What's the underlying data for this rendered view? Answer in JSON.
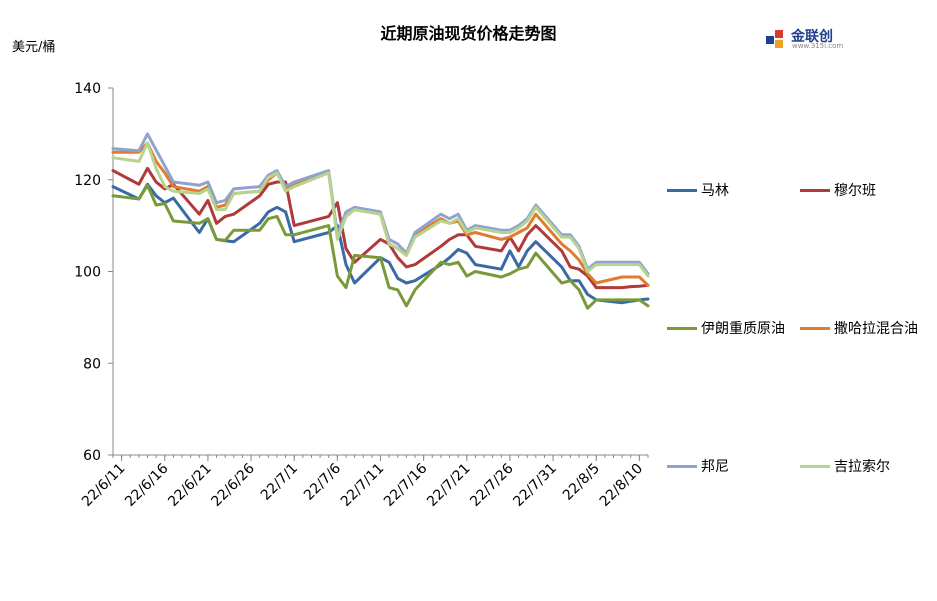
{
  "chart_data": {
    "type": "line",
    "title": "近期原油现货价格走势图",
    "ylabel": "美元/桶",
    "ylim": [
      60,
      140
    ],
    "yticks": [
      60,
      80,
      100,
      120,
      140
    ],
    "xtick_labels": [
      "22/6/11",
      "22/6/16",
      "22/6/21",
      "22/6/26",
      "22/7/1",
      "22/7/6",
      "22/7/11",
      "22/7/16",
      "22/7/21",
      "22/7/26",
      "22/7/31",
      "22/8/5",
      "22/8/10"
    ],
    "x_start": "2022-06-10",
    "x_end": "2022-08-11",
    "grid": false,
    "legend_position": "right",
    "series": [
      {
        "name": "马林",
        "color": "#3a6aa5",
        "x": [
          "2022-06-10",
          "2022-06-13",
          "2022-06-14",
          "2022-06-15",
          "2022-06-16",
          "2022-06-17",
          "2022-06-20",
          "2022-06-21",
          "2022-06-22",
          "2022-06-23",
          "2022-06-24",
          "2022-06-27",
          "2022-06-28",
          "2022-06-29",
          "2022-06-30",
          "2022-07-01",
          "2022-07-05",
          "2022-07-06",
          "2022-07-07",
          "2022-07-08",
          "2022-07-11",
          "2022-07-12",
          "2022-07-13",
          "2022-07-14",
          "2022-07-15",
          "2022-07-18",
          "2022-07-19",
          "2022-07-20",
          "2022-07-21",
          "2022-07-22",
          "2022-07-25",
          "2022-07-26",
          "2022-07-27",
          "2022-07-28",
          "2022-07-29",
          "2022-08-01",
          "2022-08-02",
          "2022-08-03",
          "2022-08-04",
          "2022-08-05",
          "2022-08-08",
          "2022-08-09",
          "2022-08-10",
          "2022-08-11"
        ],
        "values": [
          118.5,
          115.8,
          119.0,
          116.5,
          115.0,
          116.0,
          108.5,
          111.5,
          107.0,
          106.7,
          106.5,
          110.5,
          113.0,
          114.0,
          113.0,
          106.5,
          108.5,
          110.0,
          101.5,
          97.5,
          103.0,
          102.0,
          98.5,
          97.5,
          98.0,
          101.5,
          103.0,
          104.8,
          104.0,
          101.5,
          100.5,
          104.5,
          101.0,
          104.5,
          106.5,
          101.0,
          98.0,
          98.0,
          95.0,
          93.8,
          93.2,
          93.5,
          93.8,
          94.0
        ]
      },
      {
        "name": "穆尔班",
        "color": "#b03a3a",
        "x": [
          "2022-06-10",
          "2022-06-13",
          "2022-06-14",
          "2022-06-15",
          "2022-06-16",
          "2022-06-17",
          "2022-06-20",
          "2022-06-21",
          "2022-06-22",
          "2022-06-23",
          "2022-06-24",
          "2022-06-27",
          "2022-06-28",
          "2022-06-29",
          "2022-06-30",
          "2022-07-01",
          "2022-07-05",
          "2022-07-06",
          "2022-07-07",
          "2022-07-08",
          "2022-07-11",
          "2022-07-12",
          "2022-07-13",
          "2022-07-14",
          "2022-07-15",
          "2022-07-18",
          "2022-07-19",
          "2022-07-20",
          "2022-07-21",
          "2022-07-22",
          "2022-07-25",
          "2022-07-26",
          "2022-07-27",
          "2022-07-28",
          "2022-07-29",
          "2022-08-01",
          "2022-08-02",
          "2022-08-03",
          "2022-08-04",
          "2022-08-05",
          "2022-08-08",
          "2022-08-09",
          "2022-08-10",
          "2022-08-11"
        ],
        "values": [
          122.0,
          119.0,
          122.5,
          119.5,
          118.0,
          119.0,
          112.5,
          115.5,
          110.5,
          112.0,
          112.5,
          116.5,
          119.0,
          119.5,
          119.5,
          110.0,
          112.0,
          115.0,
          105.0,
          102.0,
          107.0,
          106.0,
          103.0,
          101.0,
          101.5,
          105.5,
          107.0,
          108.0,
          108.0,
          105.5,
          104.5,
          107.5,
          104.5,
          108.0,
          110.0,
          104.5,
          101.0,
          100.5,
          99.0,
          96.5,
          96.5,
          96.7,
          96.8,
          97.0
        ]
      },
      {
        "name": "伊朗重质原油",
        "color": "#7a9a3a",
        "x": [
          "2022-06-10",
          "2022-06-13",
          "2022-06-14",
          "2022-06-15",
          "2022-06-16",
          "2022-06-17",
          "2022-06-20",
          "2022-06-21",
          "2022-06-22",
          "2022-06-23",
          "2022-06-24",
          "2022-06-27",
          "2022-06-28",
          "2022-06-29",
          "2022-06-30",
          "2022-07-01",
          "2022-07-05",
          "2022-07-06",
          "2022-07-07",
          "2022-07-08",
          "2022-07-11",
          "2022-07-12",
          "2022-07-13",
          "2022-07-14",
          "2022-07-15",
          "2022-07-18",
          "2022-07-19",
          "2022-07-20",
          "2022-07-21",
          "2022-07-22",
          "2022-07-25",
          "2022-07-26",
          "2022-07-27",
          "2022-07-28",
          "2022-07-29",
          "2022-08-01",
          "2022-08-02",
          "2022-08-03",
          "2022-08-04",
          "2022-08-05",
          "2022-08-08",
          "2022-08-09",
          "2022-08-10",
          "2022-08-11"
        ],
        "values": [
          116.5,
          115.8,
          118.8,
          114.5,
          114.8,
          111.0,
          110.5,
          111.5,
          107.0,
          106.8,
          109.0,
          109.0,
          111.5,
          112.0,
          108.0,
          108.0,
          110.0,
          99.0,
          96.5,
          103.5,
          103.0,
          96.5,
          96.0,
          92.5,
          96.0,
          102.0,
          101.5,
          102.0,
          99.0,
          100.0,
          98.8,
          99.5,
          100.5,
          101.0,
          104.0,
          97.5,
          98.0,
          96.0,
          92.0,
          93.8,
          93.8,
          93.8,
          93.8,
          92.5
        ]
      },
      {
        "name": "撒哈拉混合油",
        "color": "#e07c30",
        "x": [
          "2022-06-10",
          "2022-06-13",
          "2022-06-14",
          "2022-06-15",
          "2022-06-16",
          "2022-06-17",
          "2022-06-20",
          "2022-06-21",
          "2022-06-22",
          "2022-06-23",
          "2022-06-24",
          "2022-06-27",
          "2022-06-28",
          "2022-06-29",
          "2022-06-30",
          "2022-07-01",
          "2022-07-05",
          "2022-07-06",
          "2022-07-07",
          "2022-07-08",
          "2022-07-11",
          "2022-07-12",
          "2022-07-13",
          "2022-07-14",
          "2022-07-15",
          "2022-07-18",
          "2022-07-19",
          "2022-07-20",
          "2022-07-21",
          "2022-07-22",
          "2022-07-25",
          "2022-07-26",
          "2022-07-27",
          "2022-07-28",
          "2022-07-29",
          "2022-08-01",
          "2022-08-02",
          "2022-08-03",
          "2022-08-04",
          "2022-08-05",
          "2022-08-08",
          "2022-08-09",
          "2022-08-10",
          "2022-08-11"
        ],
        "values": [
          126.0,
          126.0,
          128.0,
          124.0,
          121.5,
          118.5,
          117.5,
          118.5,
          114.0,
          114.5,
          117.0,
          117.5,
          120.0,
          121.5,
          118.0,
          119.0,
          121.5,
          108.0,
          112.0,
          113.5,
          112.5,
          106.0,
          105.0,
          103.5,
          108.0,
          111.5,
          110.5,
          111.0,
          108.0,
          108.5,
          107.0,
          107.5,
          108.5,
          109.5,
          112.5,
          106.0,
          104.5,
          102.5,
          99.5,
          97.5,
          98.8,
          98.8,
          98.8,
          97.0
        ]
      },
      {
        "name": "邦尼",
        "color": "#8fa3cf",
        "x": [
          "2022-06-10",
          "2022-06-13",
          "2022-06-14",
          "2022-06-15",
          "2022-06-16",
          "2022-06-17",
          "2022-06-20",
          "2022-06-21",
          "2022-06-22",
          "2022-06-23",
          "2022-06-24",
          "2022-06-27",
          "2022-06-28",
          "2022-06-29",
          "2022-06-30",
          "2022-07-01",
          "2022-07-05",
          "2022-07-06",
          "2022-07-07",
          "2022-07-08",
          "2022-07-11",
          "2022-07-12",
          "2022-07-13",
          "2022-07-14",
          "2022-07-15",
          "2022-07-18",
          "2022-07-19",
          "2022-07-20",
          "2022-07-21",
          "2022-07-22",
          "2022-07-25",
          "2022-07-26",
          "2022-07-27",
          "2022-07-28",
          "2022-07-29",
          "2022-08-01",
          "2022-08-02",
          "2022-08-03",
          "2022-08-04",
          "2022-08-05",
          "2022-08-08",
          "2022-08-09",
          "2022-08-10",
          "2022-08-11"
        ],
        "values": [
          126.8,
          126.3,
          130.0,
          126.5,
          123.0,
          119.5,
          118.8,
          119.5,
          115.0,
          115.5,
          118.0,
          118.5,
          121.0,
          122.0,
          118.5,
          119.5,
          122.0,
          108.0,
          113.0,
          114.0,
          113.0,
          107.0,
          106.0,
          104.0,
          108.5,
          112.5,
          111.5,
          112.5,
          109.0,
          110.0,
          109.0,
          109.0,
          110.0,
          111.5,
          114.5,
          108.0,
          108.0,
          105.5,
          100.5,
          102.0,
          102.0,
          102.0,
          102.0,
          99.5
        ]
      },
      {
        "name": "吉拉索尔",
        "color": "#b7d48e",
        "x": [
          "2022-06-10",
          "2022-06-13",
          "2022-06-14",
          "2022-06-15",
          "2022-06-16",
          "2022-06-17",
          "2022-06-20",
          "2022-06-21",
          "2022-06-22",
          "2022-06-23",
          "2022-06-24",
          "2022-06-27",
          "2022-06-28",
          "2022-06-29",
          "2022-06-30",
          "2022-07-01",
          "2022-07-05",
          "2022-07-06",
          "2022-07-07",
          "2022-07-08",
          "2022-07-11",
          "2022-07-12",
          "2022-07-13",
          "2022-07-14",
          "2022-07-15",
          "2022-07-18",
          "2022-07-19",
          "2022-07-20",
          "2022-07-21",
          "2022-07-22",
          "2022-07-25",
          "2022-07-26",
          "2022-07-27",
          "2022-07-28",
          "2022-07-29",
          "2022-08-01",
          "2022-08-02",
          "2022-08-03",
          "2022-08-04",
          "2022-08-05",
          "2022-08-08",
          "2022-08-09",
          "2022-08-10",
          "2022-08-11"
        ],
        "values": [
          124.8,
          124.0,
          128.0,
          122.5,
          118.5,
          117.5,
          117.0,
          118.0,
          113.5,
          113.5,
          117.0,
          117.5,
          120.5,
          121.5,
          117.5,
          118.5,
          121.5,
          107.0,
          112.0,
          113.5,
          112.5,
          106.0,
          105.0,
          103.5,
          107.5,
          111.0,
          110.5,
          111.5,
          108.5,
          109.5,
          108.5,
          108.5,
          109.5,
          111.0,
          114.0,
          107.5,
          107.5,
          105.0,
          100.0,
          101.5,
          101.5,
          101.5,
          101.5,
          99.0
        ]
      }
    ]
  },
  "logo": {
    "text": "金联创",
    "sub": "www.315i.com"
  }
}
